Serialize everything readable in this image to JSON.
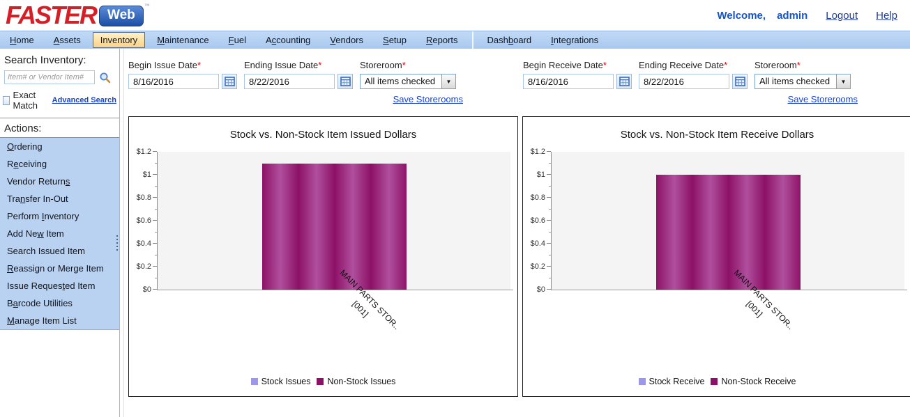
{
  "header": {
    "logo_text": "FASTER",
    "logo_badge": "Web",
    "logo_tm": "™",
    "welcome_label": "Welcome,",
    "username": "admin",
    "logout_label": "Logout",
    "help_label": "Help"
  },
  "navbar": {
    "items": [
      {
        "label": "Home",
        "key": "H"
      },
      {
        "label": "Assets",
        "key": "A"
      },
      {
        "label": "Inventory",
        "key": "",
        "active": true
      },
      {
        "label": "Maintenance",
        "key": "M"
      },
      {
        "label": "Fuel",
        "key": "F"
      },
      {
        "label": "Accounting",
        "key": "c"
      },
      {
        "label": "Vendors",
        "key": "V"
      },
      {
        "label": "Setup",
        "key": "S"
      },
      {
        "label": "Reports",
        "key": "R"
      },
      {
        "separator": true
      },
      {
        "label": "Dashboard",
        "key": "b"
      },
      {
        "label": "Integrations",
        "key": "I"
      }
    ]
  },
  "sidebar": {
    "search_heading": "Search Inventory:",
    "search_placeholder": "Item# or Vendor Item#",
    "exact_match_label": "Exact Match",
    "advanced_search_label": "Advanced Search",
    "actions_heading": "Actions:",
    "actions": [
      {
        "label": "Ordering",
        "key": "O"
      },
      {
        "label": "Receiving",
        "key": "e"
      },
      {
        "label": "Vendor Returns",
        "key": "s"
      },
      {
        "label": "Transfer In-Out",
        "key": "n"
      },
      {
        "label": "Perform Inventory",
        "key": "I"
      },
      {
        "label": "Add New Item",
        "key": "w"
      },
      {
        "label": "Search Issued Item",
        "key": ""
      },
      {
        "label": "Reassign or Merge Item",
        "key": "R"
      },
      {
        "label": "Issue Requested Item",
        "key": "t"
      },
      {
        "label": "Barcode Utilities",
        "key": "a"
      },
      {
        "label": "Manage Item List",
        "key": "M"
      }
    ]
  },
  "filters": {
    "required_marker": "*",
    "dropdown_arrow": "▼",
    "groups": [
      {
        "name": "issue",
        "fields": [
          {
            "label": "Begin Issue Date",
            "required": true,
            "type": "date",
            "value": "8/16/2016"
          },
          {
            "label": "Ending Issue Date",
            "required": true,
            "type": "date",
            "value": "8/22/2016"
          },
          {
            "label": "Storeroom",
            "required": true,
            "type": "dropdown",
            "value": "All items checked"
          }
        ],
        "save_link": "Save Storerooms"
      },
      {
        "name": "receive",
        "fields": [
          {
            "label": "Begin Receive Date",
            "required": true,
            "type": "date",
            "value": "8/16/2016"
          },
          {
            "label": "Ending Receive Date",
            "required": true,
            "type": "date",
            "value": "8/22/2016"
          },
          {
            "label": "Storeroom",
            "required": true,
            "type": "dropdown",
            "value": "All items checked"
          }
        ],
        "save_link": "Save Storerooms"
      }
    ]
  },
  "chart_data": [
    {
      "type": "bar",
      "title": "Stock vs. Non-Stock Item Issued Dollars",
      "categories": [
        "MAIN PARTS STOR.. [001]"
      ],
      "category_lines": [
        [
          "MAIN PARTS STOR..",
          "[001]"
        ]
      ],
      "series": [
        {
          "name": "Stock Issues",
          "color": "#9c96ec",
          "color_light": "#b7b2f2",
          "values": [
            0
          ]
        },
        {
          "name": "Non-Stock Issues",
          "color": "#8c1166",
          "color_light": "#b04f9d",
          "values": [
            1.1
          ]
        }
      ],
      "ylabel_prefix": "$",
      "ylim": [
        0,
        1.2
      ],
      "ytick_step": 0.2,
      "grid": false,
      "legend_position": "bottom",
      "plot_bg": "#f4f4f4"
    },
    {
      "type": "bar",
      "title": "Stock vs. Non-Stock Item Receive Dollars",
      "categories": [
        "MAIN PARTS STOR.. [001]"
      ],
      "category_lines": [
        [
          "MAIN PARTS STOR..",
          "[001]"
        ]
      ],
      "series": [
        {
          "name": "Stock Receive",
          "color": "#9c96ec",
          "color_light": "#b7b2f2",
          "values": [
            0
          ]
        },
        {
          "name": "Non-Stock Receive",
          "color": "#8c1166",
          "color_light": "#b04f9d",
          "values": [
            1.0
          ]
        }
      ],
      "ylabel_prefix": "$",
      "ylim": [
        0,
        1.2
      ],
      "ytick_step": 0.2,
      "grid": false,
      "legend_position": "bottom",
      "plot_bg": "#f4f4f4"
    }
  ],
  "colors": {
    "navbar_bg": "#b5d0f0",
    "active_tab_bg": "#fbd astra"
  }
}
